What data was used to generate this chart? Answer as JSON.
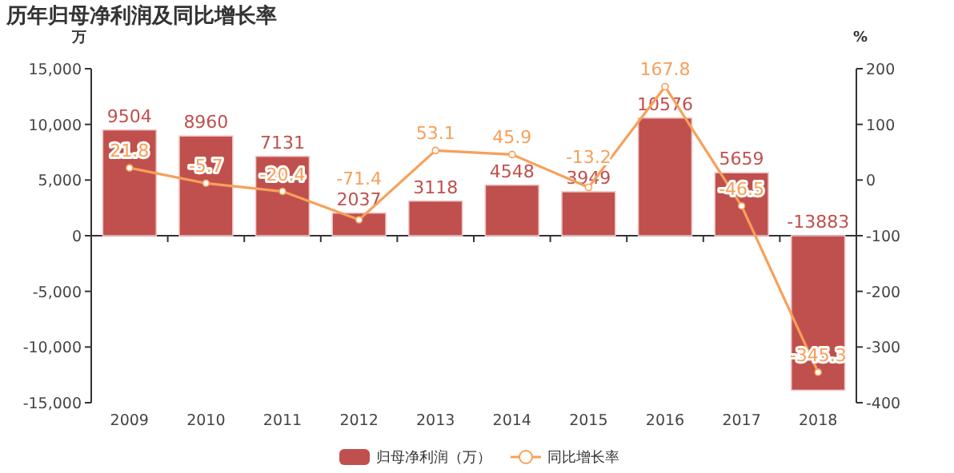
{
  "chart_data": {
    "type": "bar",
    "title": "历年归母净利润及同比增长率",
    "ylabel": "万",
    "y2label": "%",
    "categories": [
      "2009",
      "2010",
      "2011",
      "2012",
      "2013",
      "2014",
      "2015",
      "2016",
      "2017",
      "2018"
    ],
    "series": [
      {
        "name": "归母净利润（万）",
        "color": "#c0504d",
        "values": [
          9504,
          8960,
          7131,
          2037,
          3118,
          4548,
          3949,
          10576,
          5659,
          -13883
        ]
      },
      {
        "name": "同比增长率",
        "type": "line",
        "axis": "y2",
        "color": "#f7a05a",
        "marker": "circle",
        "values": [
          21.8,
          -5.7,
          -20.4,
          -71.4,
          53.1,
          45.9,
          -13.2,
          167.8,
          -46.5,
          -345.3
        ]
      }
    ],
    "ylim": [
      -15000,
      15000
    ],
    "yticks": [
      {
        "value": -15000,
        "label": "-15,000"
      },
      {
        "value": -10000,
        "label": "-10,000"
      },
      {
        "value": -5000,
        "label": "-5,000"
      },
      0,
      {
        "value": 5000,
        "label": "5,000"
      },
      {
        "value": 10000,
        "label": "10,000"
      },
      {
        "value": 15000,
        "label": "15,000"
      }
    ],
    "y2lim": [
      -400,
      200
    ],
    "y2ticks": [
      -400,
      -300,
      -200,
      -100,
      0,
      100,
      200
    ],
    "data_labels": true,
    "legend": "bottom"
  }
}
